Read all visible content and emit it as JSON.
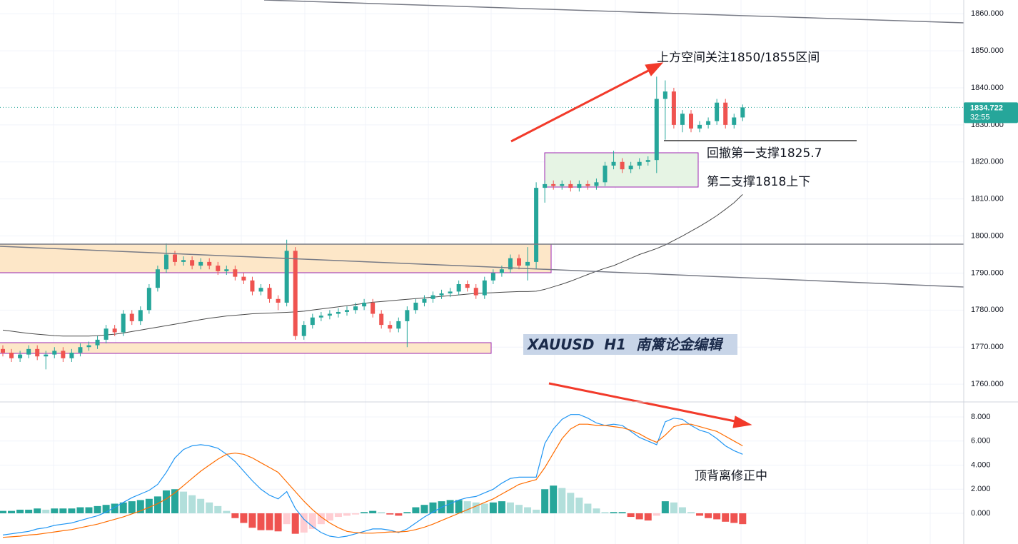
{
  "chart_data": [
    {
      "type": "candlestick",
      "open": [
        1769.5,
        1768.5,
        1767,
        1768,
        1769.5,
        1767.5,
        1768,
        1769,
        1767,
        1768.5,
        1770,
        1770.5,
        1772,
        1775,
        1774,
        1779,
        1777,
        1780,
        1786,
        1791,
        1795,
        1793,
        1793.5,
        1792,
        1793,
        1792,
        1790.5,
        1791,
        1789,
        1788,
        1785,
        1786,
        1783,
        1782,
        1796,
        1773,
        1776,
        1778,
        1778.5,
        1779,
        1779.5,
        1780,
        1781,
        1782,
        1779,
        1776,
        1775,
        1777,
        1780,
        1782,
        1783,
        1784,
        1784.5,
        1785,
        1787,
        1786,
        1784,
        1788,
        1790,
        1791,
        1794,
        1792,
        1793,
        1813,
        1814,
        1813.5,
        1814,
        1813,
        1814,
        1813.5,
        1814.5,
        1819,
        1820,
        1818,
        1819,
        1820,
        1820.5,
        1837,
        1839,
        1830,
        1833,
        1829,
        1830,
        1831,
        1836,
        1830,
        1832
      ],
      "high": [
        1770.5,
        1769.5,
        1769,
        1770.5,
        1770.5,
        1769,
        1770,
        1770,
        1769.5,
        1771,
        1771.5,
        1773,
        1776,
        1776,
        1780,
        1780,
        1781,
        1787,
        1792,
        1798,
        1796,
        1794.5,
        1794.5,
        1794,
        1794,
        1793,
        1792,
        1792,
        1790,
        1789,
        1787,
        1787,
        1784,
        1799,
        1797,
        1777,
        1779,
        1779.5,
        1780,
        1780.5,
        1781,
        1782,
        1783,
        1783,
        1780,
        1777,
        1778,
        1781,
        1783,
        1784,
        1785,
        1785.5,
        1786,
        1788,
        1788,
        1787,
        1789,
        1791,
        1792,
        1795,
        1795,
        1797,
        1814.5,
        1815,
        1815,
        1815,
        1815,
        1815,
        1815,
        1815.5,
        1820,
        1823,
        1821,
        1820,
        1821,
        1821.5,
        1843,
        1842,
        1840,
        1834,
        1834,
        1831,
        1832,
        1837,
        1837,
        1833,
        1835.5
      ],
      "low": [
        1767.5,
        1766,
        1766,
        1767,
        1766.5,
        1764,
        1767,
        1766,
        1766,
        1767.5,
        1769,
        1769.5,
        1771,
        1773,
        1773,
        1776,
        1776,
        1779,
        1785,
        1790,
        1792,
        1792,
        1791,
        1791,
        1791,
        1789.5,
        1789.5,
        1788,
        1787,
        1784,
        1784,
        1782,
        1780,
        1781,
        1772,
        1772,
        1775,
        1777,
        1777.5,
        1778,
        1778.5,
        1779,
        1780,
        1778,
        1775,
        1774,
        1774,
        1770,
        1779,
        1781,
        1782,
        1783,
        1783.5,
        1784,
        1785,
        1783,
        1783,
        1787,
        1789,
        1790,
        1791,
        1788,
        1791,
        1809,
        1812.5,
        1812.5,
        1812,
        1812,
        1812.5,
        1812.5,
        1813.5,
        1818,
        1817,
        1817,
        1818,
        1819,
        1817,
        1826,
        1829,
        1828,
        1828,
        1828,
        1829,
        1830,
        1829,
        1829,
        1831
      ],
      "close": [
        1768.5,
        1767,
        1768,
        1769.5,
        1767.5,
        1768,
        1769,
        1767,
        1768.5,
        1770,
        1770.5,
        1772,
        1775,
        1774,
        1779,
        1777,
        1780,
        1786,
        1791,
        1795,
        1793,
        1793.5,
        1792,
        1793,
        1792,
        1790.5,
        1791,
        1789,
        1788,
        1785,
        1786,
        1783,
        1782,
        1796,
        1773,
        1776,
        1778,
        1778.5,
        1779,
        1779.5,
        1780,
        1781,
        1782,
        1779,
        1776,
        1775,
        1777,
        1780,
        1782,
        1783,
        1784,
        1784.5,
        1785,
        1787,
        1786,
        1784,
        1788,
        1790,
        1791,
        1794,
        1792,
        1793,
        1813,
        1814,
        1813.5,
        1814,
        1813,
        1814,
        1813.5,
        1814.5,
        1819,
        1820,
        1818,
        1819,
        1820,
        1820.5,
        1837,
        1839,
        1830,
        1833,
        1829,
        1830,
        1831,
        1836,
        1830,
        1832,
        1834.722
      ],
      "ma": [
        1774.6,
        1774.3,
        1774,
        1773.7,
        1773.5,
        1773.3,
        1773.1,
        1773,
        1773,
        1773,
        1773,
        1773.1,
        1773.3,
        1773.5,
        1773.8,
        1774.2,
        1774.6,
        1775,
        1775.4,
        1775.8,
        1776.2,
        1776.6,
        1777,
        1777.4,
        1777.8,
        1778.1,
        1778.4,
        1778.6,
        1778.8,
        1779,
        1779.1,
        1779.2,
        1779.3,
        1779.4,
        1779.5,
        1779.7,
        1780,
        1780.3,
        1780.6,
        1780.9,
        1781.2,
        1781.5,
        1781.8,
        1782.1,
        1782.3,
        1782.5,
        1782.7,
        1782.9,
        1783.1,
        1783.3,
        1783.5,
        1783.7,
        1783.9,
        1784.1,
        1784.3,
        1784.5,
        1784.6,
        1784.7,
        1784.8,
        1784.9,
        1785,
        1785,
        1785.1,
        1785.6,
        1786.3,
        1787,
        1787.8,
        1788.7,
        1789.6,
        1790.5,
        1791.3,
        1792,
        1793,
        1794,
        1795,
        1795.8,
        1796.6,
        1797.6,
        1798.8,
        1800,
        1801.3,
        1802.6,
        1804,
        1805.5,
        1807.2,
        1809,
        1811.2
      ],
      "up_color": "#26a69a",
      "down_color": "#ef5350",
      "ma_color": "#4a4a4a",
      "ylim": [
        1755.4,
        1863.7
      ],
      "yticks": [
        {
          "value": 1760,
          "label": "1760.000"
        },
        {
          "value": 1770,
          "label": "1770.000"
        },
        {
          "value": 1780,
          "label": "1780.000"
        },
        {
          "value": 1790,
          "label": "1790.000"
        },
        {
          "value": 1800,
          "label": "1800.000"
        },
        {
          "value": 1810,
          "label": "1810.000"
        },
        {
          "value": 1820,
          "label": "1820.000"
        },
        {
          "value": 1830,
          "label": "1830.000"
        },
        {
          "value": 1840,
          "label": "1840.000"
        },
        {
          "value": 1850,
          "label": "1850.000"
        },
        {
          "value": 1860,
          "label": "1860.000"
        }
      ],
      "last_price": 1834.722,
      "countdown": "32:55",
      "watermark": "XAUUSD  H1  南篱论金编辑",
      "annotations": [
        "上方空间关注1850/1855区间",
        "回撤第一支撑1825.7",
        "第二支撑1818上下",
        "顶背离修正中"
      ],
      "grid": true
    },
    {
      "type": "macd",
      "histogram": [
        0.2,
        0.2,
        0.3,
        0.3,
        0.4,
        0.3,
        0.4,
        0.4,
        0.4,
        0.5,
        0.5,
        0.6,
        0.7,
        0.8,
        0.9,
        1.0,
        1.1,
        1.2,
        1.4,
        1.9,
        2.0,
        1.8,
        1.5,
        1.2,
        0.9,
        0.6,
        0.2,
        -0.4,
        -0.8,
        -1.2,
        -1.4,
        -1.4,
        -1.5,
        -0.9,
        -1.7,
        -1.6,
        -1.3,
        -0.9,
        -0.6,
        -0.3,
        -0.2,
        -0.1,
        0.1,
        0.2,
        0.1,
        -0.1,
        -0.2,
        0.1,
        0.5,
        0.7,
        0.9,
        1.0,
        1.1,
        1.1,
        1.0,
        0.9,
        0.8,
        0.9,
        1.0,
        0.9,
        0.7,
        0.5,
        0.3,
        2.0,
        2.3,
        2.1,
        1.7,
        1.3,
        0.8,
        0.4,
        0.1,
        0.1,
        0.1,
        -0.3,
        -0.5,
        -0.6,
        -0.2,
        1.0,
        0.9,
        0.5,
        0.1,
        -0.2,
        -0.4,
        -0.5,
        -0.7,
        -0.8,
        -0.9
      ],
      "macd": [
        -1.8,
        -1.7,
        -1.6,
        -1.5,
        -1.3,
        -1.2,
        -1.0,
        -0.9,
        -0.8,
        -0.6,
        -0.4,
        -0.2,
        0.1,
        0.5,
        0.9,
        1.3,
        1.6,
        1.9,
        2.4,
        3.4,
        4.6,
        5.3,
        5.6,
        5.7,
        5.6,
        5.4,
        4.9,
        4.3,
        3.5,
        2.7,
        2.0,
        1.5,
        1.2,
        1.8,
        0.4,
        -0.5,
        -1.1,
        -1.6,
        -1.9,
        -2.0,
        -1.9,
        -1.7,
        -1.5,
        -1.3,
        -1.3,
        -1.4,
        -1.6,
        -1.3,
        -0.8,
        -0.3,
        0.1,
        0.5,
        0.8,
        1.1,
        1.3,
        1.4,
        1.7,
        2.0,
        2.5,
        2.9,
        3.0,
        3.0,
        3.0,
        5.8,
        7.0,
        7.8,
        8.2,
        8.2,
        7.9,
        7.5,
        7.3,
        7.4,
        7.3,
        6.8,
        6.3,
        6.0,
        5.7,
        7.6,
        7.9,
        7.8,
        7.3,
        6.9,
        6.7,
        6.2,
        5.6,
        5.2,
        4.9
      ],
      "signal": [
        -2.0,
        -1.95,
        -1.9,
        -1.8,
        -1.75,
        -1.65,
        -1.55,
        -1.45,
        -1.35,
        -1.2,
        -1.05,
        -0.9,
        -0.7,
        -0.5,
        -0.3,
        -0.05,
        0.2,
        0.5,
        0.8,
        1.2,
        1.7,
        2.3,
        2.9,
        3.5,
        4.0,
        4.5,
        4.9,
        5.0,
        4.9,
        4.6,
        4.2,
        3.8,
        3.4,
        2.6,
        1.8,
        1.0,
        0.3,
        -0.3,
        -0.8,
        -1.2,
        -1.5,
        -1.6,
        -1.65,
        -1.65,
        -1.6,
        -1.55,
        -1.55,
        -1.5,
        -1.35,
        -1.15,
        -0.9,
        -0.6,
        -0.3,
        0.0,
        0.3,
        0.6,
        0.9,
        1.2,
        1.6,
        2.0,
        2.4,
        2.6,
        2.8,
        3.8,
        5.0,
        6.2,
        7.0,
        7.4,
        7.4,
        7.3,
        7.3,
        7.2,
        7.1,
        6.9,
        6.6,
        6.2,
        5.9,
        6.5,
        7.2,
        7.4,
        7.4,
        7.2,
        7.0,
        6.8,
        6.4,
        6.0,
        5.6
      ],
      "macd_color": "#2196f3",
      "signal_color": "#ff6d00",
      "hist_colors": [
        "#26a69a",
        "#b2dfdb",
        "#ef5350",
        "#ffcdd2"
      ],
      "ylim": [
        -2.55,
        9.13
      ],
      "yticks": [
        {
          "value": 0,
          "label": "0.000"
        },
        {
          "value": 2,
          "label": "2.000"
        },
        {
          "value": 4,
          "label": "4.000"
        },
        {
          "value": 6,
          "label": "6.000"
        },
        {
          "value": 8,
          "label": "8.000"
        }
      ],
      "grid": true
    }
  ]
}
